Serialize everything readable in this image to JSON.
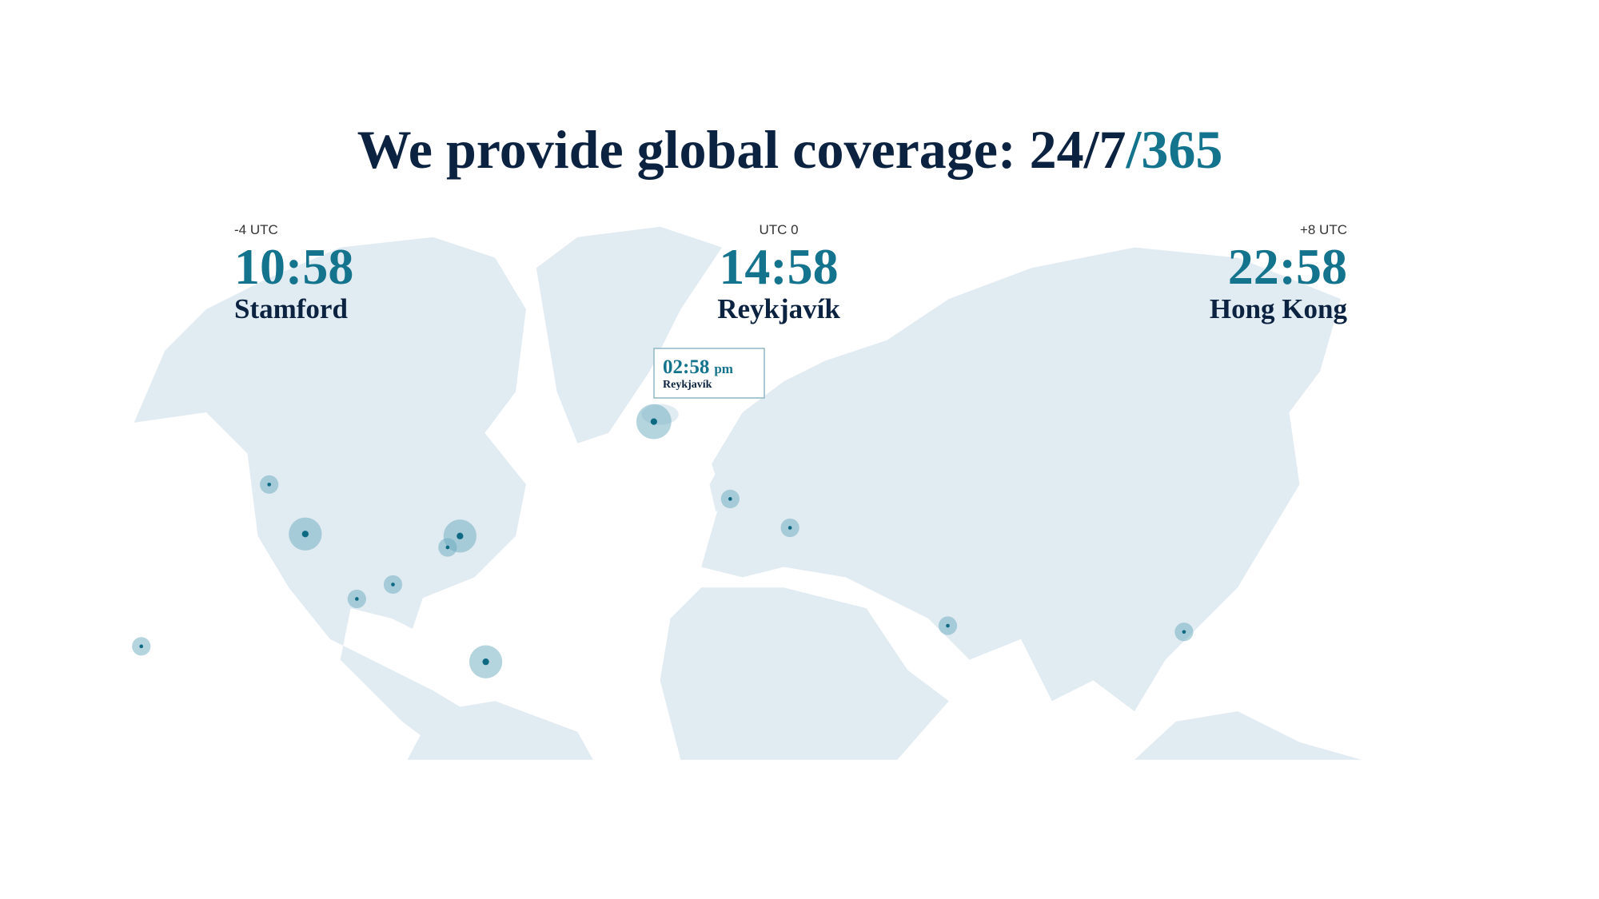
{
  "header": {
    "title": "We provide global coverage: 24/7",
    "title_accent": "/365"
  },
  "clocks": [
    {
      "offset": "-4 UTC",
      "time": "10:58",
      "city": "Stamford"
    },
    {
      "offset": "UTC 0",
      "time": "14:58",
      "city": "Reykjavík"
    },
    {
      "offset": "+8 UTC",
      "time": "22:58",
      "city": "Hong Kong"
    }
  ],
  "tooltip": {
    "time": "02:58",
    "period": "pm",
    "city": "Reykjavík"
  }
}
